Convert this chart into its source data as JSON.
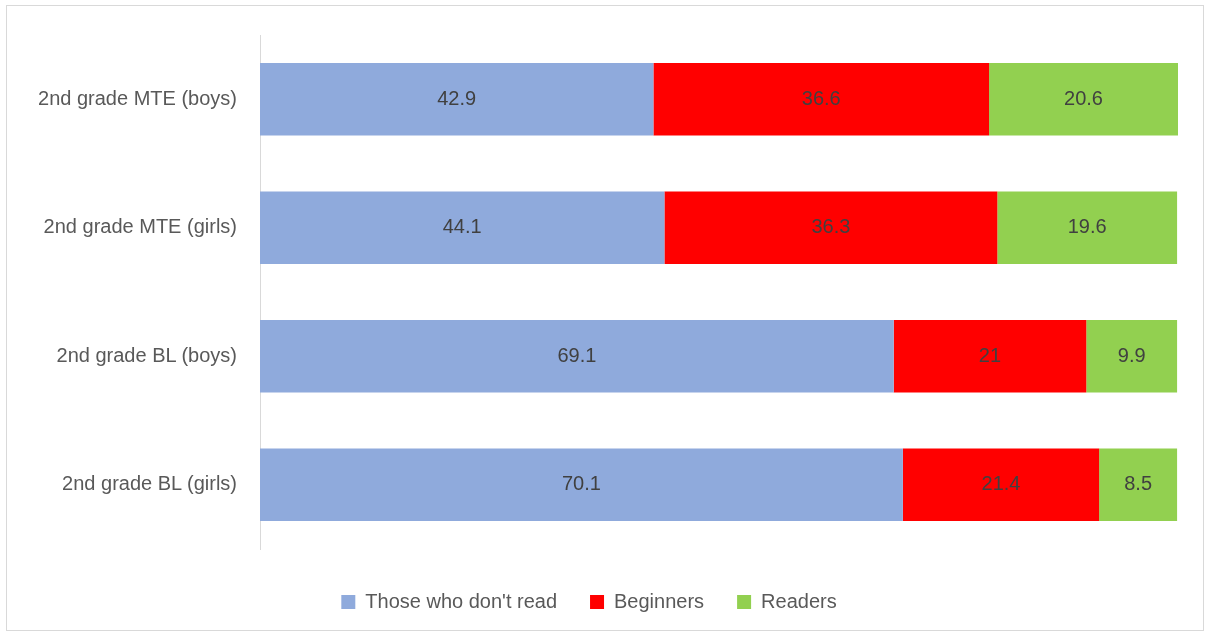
{
  "chart_data": {
    "type": "bar",
    "orientation": "horizontal",
    "stacked": true,
    "categories": [
      "2nd grade MTE (boys)",
      "2nd grade MTE (girls)",
      "2nd grade BL (boys)",
      "2nd grade BL (girls)"
    ],
    "series": [
      {
        "name": "Those who don't read",
        "color": "#8faadc",
        "values": [
          42.9,
          44.1,
          69.1,
          70.1
        ]
      },
      {
        "name": "Beginners",
        "color": "#ff0000",
        "values": [
          36.6,
          36.3,
          21,
          21.4
        ]
      },
      {
        "name": "Readers",
        "color": "#92d050",
        "values": [
          20.6,
          19.6,
          9.9,
          8.5
        ]
      }
    ],
    "data_labels": true,
    "legend": "bottom",
    "tick_labels": "y"
  }
}
